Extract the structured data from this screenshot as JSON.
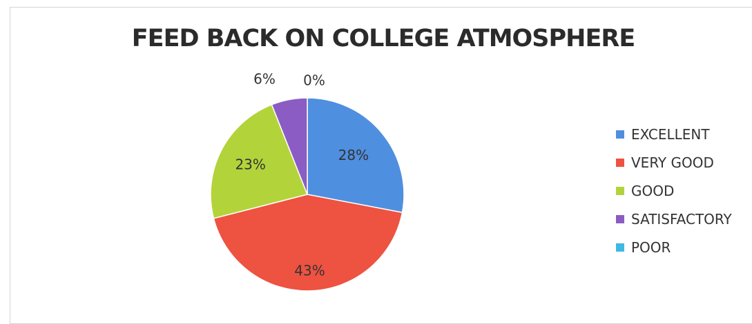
{
  "chart_data": {
    "type": "pie",
    "title": "FEED BACK ON COLLEGE ATMOSPHERE",
    "categories": [
      "EXCELLENT",
      "VERY GOOD",
      "GOOD",
      "SATISFACTORY",
      "POOR"
    ],
    "values": [
      28,
      43,
      23,
      6,
      0
    ],
    "data_labels": [
      "28%",
      "43%",
      "23%",
      "6%",
      "0%"
    ],
    "colors": [
      "#4f8fdf",
      "#ee5241",
      "#b3d33b",
      "#8b5cc3",
      "#3fb8e4"
    ],
    "legend_position": "right"
  }
}
